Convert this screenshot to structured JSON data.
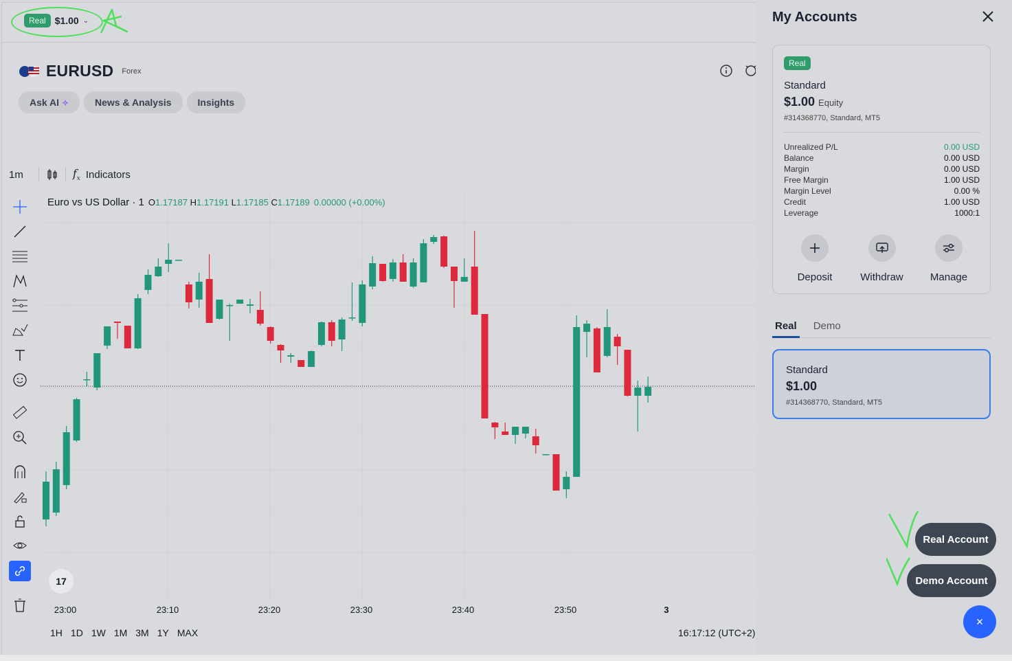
{
  "header": {
    "account_badge": "Real",
    "account_balance": "$1.00"
  },
  "symbol": {
    "name": "EURUSD",
    "type": "Forex"
  },
  "tabs": [
    {
      "label": "Ask AI"
    },
    {
      "label": "News & Analysis"
    },
    {
      "label": "Insights"
    }
  ],
  "chart_toolbar": {
    "timeframe": "1m",
    "indicators_label": "Indicators"
  },
  "legend": {
    "title": "Euro vs US Dollar · 1",
    "o_label": "O",
    "o": "1.17187",
    "h_label": "H",
    "h": "1.17191",
    "l_label": "L",
    "l": "1.17185",
    "c_label": "C",
    "c": "1.17189",
    "change": "0.00000 (+0.00%)"
  },
  "x_axis_labels": [
    "23:00",
    "23:10",
    "23:20",
    "23:30",
    "23:40",
    "23:50",
    "3"
  ],
  "ranges": [
    "1H",
    "1D",
    "1W",
    "1M",
    "3M",
    "1Y",
    "MAX"
  ],
  "clock": "16:17:12 (UTC+2)",
  "tv_logo": "17",
  "panel": {
    "title": "My Accounts",
    "card": {
      "badge": "Real",
      "type": "Standard",
      "equity": "$1.00",
      "equity_label": "Equity",
      "account_line": "#314368770, Standard, MT5",
      "stats": [
        {
          "label": "Unrealized P/L",
          "value": "0.00 USD"
        },
        {
          "label": "Balance",
          "value": "0.00 USD"
        },
        {
          "label": "Margin",
          "value": "0.00 USD"
        },
        {
          "label": "Free Margin",
          "value": "1.00 USD"
        },
        {
          "label": "Margin Level",
          "value": "0.00 %"
        },
        {
          "label": "Credit",
          "value": "1.00 USD"
        },
        {
          "label": "Leverage",
          "value": "1000:1"
        }
      ],
      "actions": [
        {
          "label": "Deposit"
        },
        {
          "label": "Withdraw"
        },
        {
          "label": "Manage"
        }
      ]
    },
    "account_tabs": [
      {
        "label": "Real"
      },
      {
        "label": "Demo"
      }
    ],
    "selected_account": {
      "type": "Standard",
      "amount": "$1.00",
      "account_line": "#314368770, Standard, MT5"
    },
    "real_account_button": "Real Account",
    "demo_account_button": "Demo Account",
    "fab_label": "×"
  },
  "colors": {
    "up": "#22967a",
    "down": "#dc2a3c",
    "accent": "#2862ff",
    "annotation": "#4ee05a"
  },
  "chart_data": {
    "type": "candlestick",
    "x_tick_labels": [
      "23:00",
      "23:10",
      "23:20",
      "23:30",
      "23:40",
      "23:50",
      "3"
    ],
    "candles": [
      {
        "dir": "up",
        "o": 480,
        "c": 425,
        "h": 490,
        "l": 410
      },
      {
        "dir": "up",
        "o": 470,
        "c": 407,
        "h": 475,
        "l": 396
      },
      {
        "dir": "up",
        "o": 430,
        "c": 353,
        "h": 436,
        "l": 344
      },
      {
        "dir": "up",
        "o": 365,
        "c": 305,
        "h": 367,
        "l": 303
      },
      {
        "dir": "up",
        "o": 276,
        "c": 277,
        "h": 286,
        "l": 265
      },
      {
        "dir": "up",
        "o": 288,
        "c": 238,
        "h": 292,
        "l": 238
      },
      {
        "dir": "up",
        "o": 227,
        "c": 199,
        "h": 232,
        "l": 199
      },
      {
        "dir": "down",
        "o": 192,
        "c": 194,
        "h": 217,
        "l": 192
      },
      {
        "dir": "down",
        "o": 198,
        "c": 231,
        "h": 231,
        "l": 198
      },
      {
        "dir": "up",
        "o": 231,
        "c": 158,
        "h": 232,
        "l": 152
      },
      {
        "dir": "up",
        "o": 146,
        "c": 124,
        "h": 152,
        "l": 116
      },
      {
        "dir": "up",
        "o": 126,
        "c": 112,
        "h": 127,
        "l": 100
      },
      {
        "dir": "up",
        "o": 108,
        "c": 102,
        "h": 120,
        "l": 78
      },
      {
        "dir": "up",
        "o": 102,
        "c": 102,
        "h": 102,
        "l": 102
      },
      {
        "dir": "down",
        "o": 138,
        "c": 164,
        "h": 173,
        "l": 134
      },
      {
        "dir": "up",
        "o": 160,
        "c": 134,
        "h": 172,
        "l": 121
      },
      {
        "dir": "down",
        "o": 130,
        "c": 194,
        "h": 194,
        "l": 94
      },
      {
        "dir": "up",
        "o": 188,
        "c": 160,
        "h": 189,
        "l": 160
      },
      {
        "dir": "up",
        "o": 168,
        "c": 168,
        "h": 220,
        "l": 166
      },
      {
        "dir": "up",
        "o": 166,
        "c": 160,
        "h": 166,
        "l": 160
      },
      {
        "dir": "up",
        "o": 169,
        "c": 167,
        "h": 180,
        "l": 159
      },
      {
        "dir": "down",
        "o": 175,
        "c": 195,
        "h": 198,
        "l": 148
      },
      {
        "dir": "down",
        "o": 200,
        "c": 220,
        "h": 224,
        "l": 199
      },
      {
        "dir": "down",
        "o": 226,
        "c": 234,
        "h": 252,
        "l": 225
      },
      {
        "dir": "up",
        "o": 243,
        "c": 241,
        "h": 252,
        "l": 238
      },
      {
        "dir": "down",
        "o": 248,
        "c": 258,
        "h": 258,
        "l": 248
      },
      {
        "dir": "up",
        "o": 258,
        "c": 235,
        "h": 258,
        "l": 234
      },
      {
        "dir": "up",
        "o": 226,
        "c": 193,
        "h": 228,
        "l": 192
      },
      {
        "dir": "down",
        "o": 193,
        "c": 220,
        "h": 228,
        "l": 190
      },
      {
        "dir": "up",
        "o": 218,
        "c": 189,
        "h": 235,
        "l": 186
      },
      {
        "dir": "up",
        "o": 187,
        "c": 186,
        "h": 191,
        "l": 135
      },
      {
        "dir": "up",
        "o": 194,
        "c": 138,
        "h": 199,
        "l": 132
      },
      {
        "dir": "up",
        "o": 141,
        "c": 107,
        "h": 145,
        "l": 97
      },
      {
        "dir": "down",
        "o": 108,
        "c": 133,
        "h": 134,
        "l": 108
      },
      {
        "dir": "up",
        "o": 130,
        "c": 106,
        "h": 134,
        "l": 101
      },
      {
        "dir": "down",
        "o": 106,
        "c": 134,
        "h": 134,
        "l": 94
      },
      {
        "dir": "up",
        "o": 141,
        "c": 106,
        "h": 143,
        "l": 100
      },
      {
        "dir": "up",
        "o": 135,
        "c": 78,
        "h": 135,
        "l": 72
      },
      {
        "dir": "up",
        "o": 76,
        "c": 69,
        "h": 79,
        "l": 66
      },
      {
        "dir": "down",
        "o": 68,
        "c": 112,
        "h": 114,
        "l": 67
      },
      {
        "dir": "down",
        "o": 112,
        "c": 133,
        "h": 172,
        "l": 112
      },
      {
        "dir": "up",
        "o": 134,
        "c": 127,
        "h": 134,
        "l": 100
      },
      {
        "dir": "down",
        "o": 112,
        "c": 182,
        "h": 182,
        "l": 60
      },
      {
        "dir": "down",
        "o": 181,
        "c": 333,
        "h": 333,
        "l": 181
      },
      {
        "dir": "down",
        "o": 339,
        "c": 346,
        "h": 363,
        "l": 338
      },
      {
        "dir": "down",
        "o": 352,
        "c": 357,
        "h": 357,
        "l": 339
      },
      {
        "dir": "up",
        "o": 357,
        "c": 345,
        "h": 370,
        "l": 345
      },
      {
        "dir": "up",
        "o": 355,
        "c": 345,
        "h": 362,
        "l": 345
      },
      {
        "dir": "down",
        "o": 359,
        "c": 372,
        "h": 384,
        "l": 348
      },
      {
        "dir": "up",
        "o": 385,
        "c": 385,
        "h": 385,
        "l": 385
      },
      {
        "dir": "down",
        "o": 385,
        "c": 438,
        "h": 438,
        "l": 385
      },
      {
        "dir": "up",
        "o": 436,
        "c": 418,
        "h": 449,
        "l": 410
      },
      {
        "dir": "up",
        "o": 418,
        "c": 200,
        "h": 418,
        "l": 183
      },
      {
        "dir": "up",
        "o": 207,
        "c": 195,
        "h": 244,
        "l": 190
      },
      {
        "dir": "down",
        "o": 202,
        "c": 266,
        "h": 266,
        "l": 200
      },
      {
        "dir": "up",
        "o": 242,
        "c": 200,
        "h": 244,
        "l": 174
      },
      {
        "dir": "down",
        "o": 214,
        "c": 228,
        "h": 255,
        "l": 210
      },
      {
        "dir": "down",
        "o": 233,
        "c": 300,
        "h": 301,
        "l": 233
      },
      {
        "dir": "up",
        "o": 300,
        "c": 288,
        "h": 352,
        "l": 278
      },
      {
        "dir": "up",
        "o": 300,
        "c": 287,
        "h": 310,
        "l": 272
      }
    ],
    "last_price_line": 286,
    "y_axis": "price scale not shown"
  }
}
